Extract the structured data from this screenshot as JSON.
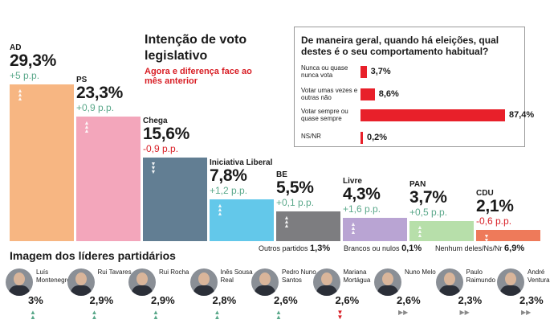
{
  "title": "Intenção de voto legislativo",
  "subtitle": "Agora e diferença face ao mês anterior",
  "colors": {
    "accent_red": "#d81e25",
    "up_green": "#5aa88a",
    "survey_bar": "#e8202a"
  },
  "chart_data": {
    "type": "bar",
    "title": "Intenção de voto legislativo",
    "subtitle": "Agora e diferença face ao mês anterior",
    "ylabel": "%",
    "ylim": [
      0,
      30
    ],
    "categories": [
      "AD",
      "PS",
      "Chega",
      "Iniciativa Liberal",
      "BE",
      "Livre",
      "PAN",
      "CDU"
    ],
    "values": [
      29.3,
      23.3,
      15.6,
      7.8,
      5.5,
      4.3,
      3.7,
      2.1
    ],
    "bars": [
      {
        "party": "AD",
        "value": 29.3,
        "value_text": "29,3%",
        "change_text": "+5 p.p.",
        "direction": "up",
        "color": "#f7b682"
      },
      {
        "party": "PS",
        "value": 23.3,
        "value_text": "23,3%",
        "change_text": "+0,9 p.p.",
        "direction": "up",
        "color": "#f3a6bb"
      },
      {
        "party": "Chega",
        "value": 15.6,
        "value_text": "15,6%",
        "change_text": "-0,9 p.p.",
        "direction": "down",
        "color": "#627e93"
      },
      {
        "party": "Iniciativa Liberal",
        "value": 7.8,
        "value_text": "7,8%",
        "change_text": "+1,2 p.p.",
        "direction": "up",
        "color": "#63c8ea"
      },
      {
        "party": "BE",
        "value": 5.5,
        "value_text": "5,5%",
        "change_text": "+0,1 p.p.",
        "direction": "up",
        "color": "#7d7d80"
      },
      {
        "party": "Livre",
        "value": 4.3,
        "value_text": "4,3%",
        "change_text": "+1,6 p.p.",
        "direction": "up",
        "color": "#b9a4d3"
      },
      {
        "party": "PAN",
        "value": 3.7,
        "value_text": "3,7%",
        "change_text": "+0,5 p.p.",
        "direction": "up",
        "color": "#b7dfaa"
      },
      {
        "party": "CDU",
        "value": 2.1,
        "value_text": "2,1%",
        "change_text": "-0,6 p.p.",
        "direction": "down",
        "color": "#ee7a5a"
      }
    ]
  },
  "survey": {
    "question": "De maneira geral, quando há eleições, qual destes é o seu comportamento habitual?",
    "rows": [
      {
        "label": "Nunca ou quase nunca vota",
        "value": 3.7,
        "value_text": "3,7%"
      },
      {
        "label": "Votar umas vezes e outras não",
        "value": 8.6,
        "value_text": "8,6%"
      },
      {
        "label": "Votar sempre ou quase sempre",
        "value": 87.4,
        "value_text": "87,4%"
      },
      {
        "label": "NS/NR",
        "value": 0.2,
        "value_text": "0,2%"
      }
    ]
  },
  "totals": [
    {
      "label": "Outros partidos",
      "value": "1,3%"
    },
    {
      "label": "Brancos ou nulos",
      "value": "0,1%"
    },
    {
      "label": "Nenhum deles/Ns/Nr",
      "value": "6,9%"
    }
  ],
  "leaders_title": "Imagem dos líderes partidários",
  "leaders": [
    {
      "name": "Luís Montenegro",
      "value": "3%",
      "trend": "up"
    },
    {
      "name": "Rui Tavares",
      "value": "2,9%",
      "trend": "up"
    },
    {
      "name": "Rui Rocha",
      "value": "2,9%",
      "trend": "up"
    },
    {
      "name": "Inês Sousa Real",
      "value": "2,8%",
      "trend": "up"
    },
    {
      "name": "Pedro Nuno Santos",
      "value": "2,6%",
      "trend": "up"
    },
    {
      "name": "Mariana Mortágua",
      "value": "2,6%",
      "trend": "down"
    },
    {
      "name": "Nuno Melo",
      "value": "2,6%",
      "trend": "flat"
    },
    {
      "name": "Paulo Raimundo",
      "value": "2,3%",
      "trend": "flat"
    },
    {
      "name": "André Ventura",
      "value": "2,3%",
      "trend": "flat"
    }
  ]
}
